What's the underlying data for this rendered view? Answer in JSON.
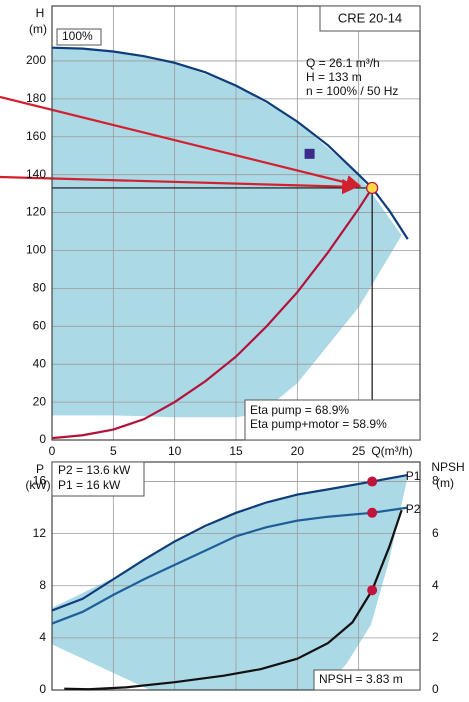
{
  "chart_data": [
    {
      "type": "line",
      "title": "CRE 20-14",
      "ylabel": "H",
      "yunit": "(m)",
      "xlabel": "Q(m³/h)",
      "xlim": [
        0,
        30
      ],
      "ylim": [
        0,
        229
      ],
      "xticks": [
        0,
        5,
        10,
        15,
        20,
        25
      ],
      "yticks": [
        0,
        20,
        40,
        60,
        80,
        100,
        120,
        140,
        160,
        180,
        200
      ],
      "grid": true,
      "areas": [
        {
          "color": "#acd9e6",
          "x": [
            0,
            5,
            10,
            15,
            20,
            25,
            28.5,
            25,
            20,
            17,
            15,
            10,
            5,
            0
          ],
          "values": [
            207,
            205,
            199,
            187,
            168,
            140,
            108,
            70,
            30,
            14,
            12,
            12,
            13,
            13
          ]
        }
      ],
      "series": [
        {
          "name": "100%",
          "color": "#0f3d7a",
          "x": [
            0,
            2.5,
            5,
            7.5,
            10,
            12.5,
            15,
            17.5,
            20,
            22.5,
            25,
            26.1,
            27.5,
            29
          ],
          "values": [
            207,
            206.5,
            205,
            202.5,
            199,
            194,
            187,
            178.5,
            168,
            155.5,
            140,
            133,
            121,
            106
          ]
        },
        {
          "color": "#b3123a",
          "x": [
            0,
            2.5,
            5,
            7.5,
            10,
            12.5,
            15,
            17.5,
            20,
            22.5,
            25,
            26.1
          ],
          "values": [
            1,
            2.5,
            5.5,
            11,
            20,
            31,
            44,
            60,
            78,
            99,
            122,
            133
          ]
        }
      ],
      "duty_point": {
        "x": 26.1,
        "y": 133,
        "color": "#ffd64a"
      },
      "marker": {
        "x": 21,
        "y": 151,
        "color": "#3a2a8c"
      },
      "annotations": [
        "Q = 26.1 m³/h",
        "H = 133 m",
        "n = 100% / 50 Hz"
      ],
      "efficiency": [
        "Eta pump = 68.9%",
        "Eta pump+motor = 58.9%"
      ]
    },
    {
      "type": "line",
      "ylabel": "P",
      "yunit": "(kW)",
      "y2label": "NPSH",
      "y2unit": "(m)",
      "xlim": [
        0,
        30
      ],
      "ylim": [
        0,
        17.5
      ],
      "y2lim": [
        0,
        8.75
      ],
      "xticks": [
        0,
        5,
        10,
        15,
        20,
        25
      ],
      "xtick_labels": false,
      "yticks": [
        0,
        4,
        8,
        12,
        16
      ],
      "y2ticks": [
        0,
        2,
        4,
        6,
        8
      ],
      "grid": true,
      "areas": [
        {
          "color": "#acd9e6",
          "x": [
            0,
            5,
            10,
            15,
            20,
            26.1,
            29,
            27.5,
            26,
            24,
            22,
            15,
            8,
            0
          ],
          "values": [
            6.3,
            8.6,
            11.3,
            13.6,
            15,
            16,
            16.4,
            10,
            5,
            2,
            0,
            0,
            0,
            3.5
          ]
        }
      ],
      "series": [
        {
          "name": "P1",
          "color": "#0f3d7a",
          "x": [
            0,
            2.5,
            5,
            7.5,
            10,
            12.5,
            15,
            17.5,
            20,
            22.5,
            26.1,
            29
          ],
          "values": [
            6.1,
            7,
            8.5,
            10,
            11.4,
            12.6,
            13.6,
            14.4,
            15,
            15.4,
            16,
            16.5
          ]
        },
        {
          "name": "P2",
          "color": "#1f5f98",
          "x": [
            0,
            2.5,
            5,
            7.5,
            10,
            12.5,
            15,
            17.5,
            20,
            22.5,
            26.1,
            29
          ],
          "values": [
            5.1,
            6,
            7.3,
            8.5,
            9.6,
            10.7,
            11.8,
            12.5,
            13,
            13.3,
            13.6,
            14
          ]
        },
        {
          "color": "#111111",
          "axis": "y2",
          "x": [
            1,
            3,
            6,
            10,
            14,
            17,
            20,
            22.5,
            24.5,
            26.1,
            27.5,
            28.5
          ],
          "values": [
            0.05,
            0.03,
            0.1,
            0.3,
            0.55,
            0.8,
            1.2,
            1.8,
            2.6,
            3.83,
            5.5,
            6.9
          ]
        }
      ],
      "points": [
        {
          "x": 26.1,
          "y": 16,
          "color": "#c0143c"
        },
        {
          "x": 26.1,
          "y": 13.6,
          "color": "#c0143c"
        },
        {
          "x": 26.1,
          "y": 3.83,
          "axis": "y2",
          "color": "#c0143c"
        }
      ],
      "annotations": [
        "P2 = 13.6 kW",
        "P1 = 16 kW"
      ],
      "npsh_label": "NPSH = 3.83 m"
    }
  ]
}
